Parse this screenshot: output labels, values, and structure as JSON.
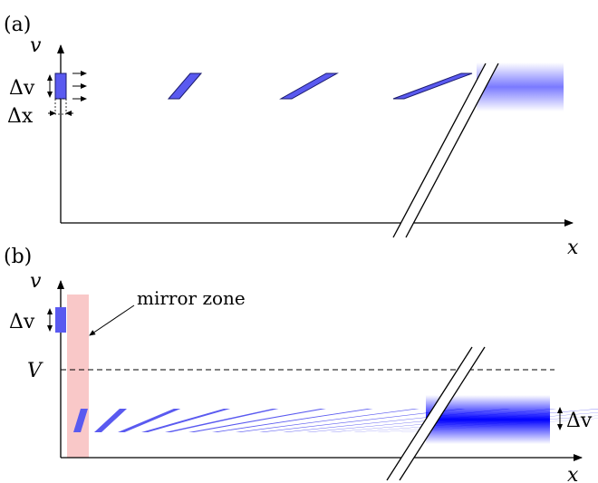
{
  "panel_a": {
    "label": "(a)",
    "y_axis_label": "v",
    "x_axis_label": "x",
    "delta_v": "Δv",
    "delta_x": "Δx"
  },
  "panel_b": {
    "label": "(b)",
    "y_axis_label": "v",
    "x_axis_label": "x",
    "delta_v_left": "Δv",
    "delta_v_right": "Δv",
    "v_level": "V",
    "mirror_zone": "mirror zone"
  },
  "colors": {
    "blob": "#5a5af0",
    "blob_stroke": "#1a1a6e",
    "beam": "#0000ff",
    "mirror": "#f9c8c8"
  }
}
